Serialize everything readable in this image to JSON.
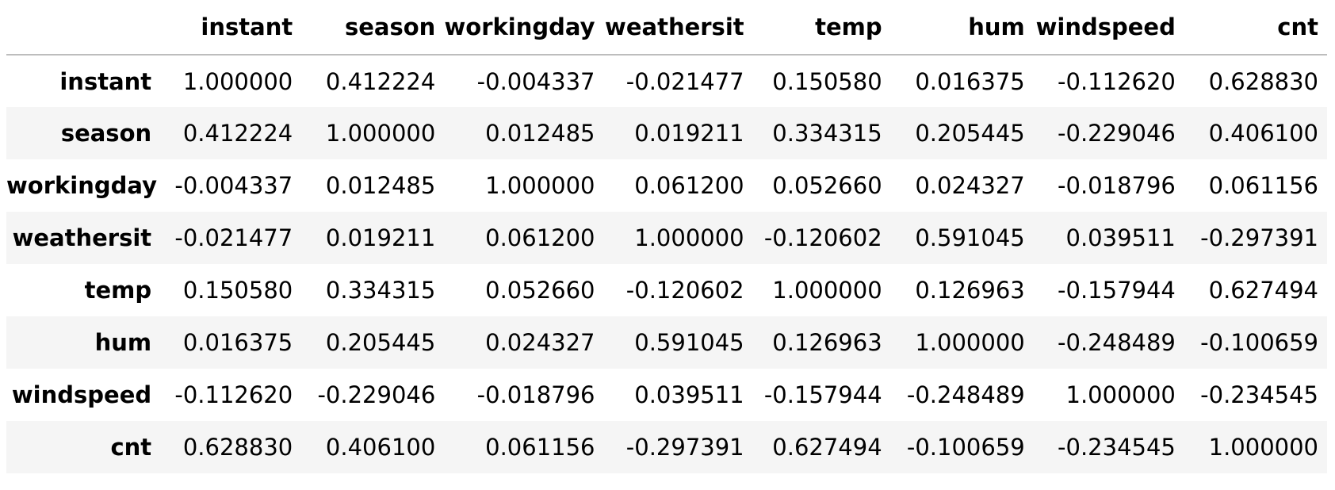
{
  "table": {
    "corner": "",
    "columns": [
      "instant",
      "season",
      "workingday",
      "weathersit",
      "temp",
      "hum",
      "windspeed",
      "cnt"
    ],
    "rows": [
      {
        "label": "instant",
        "cells": [
          "1.000000",
          "0.412224",
          "-0.004337",
          "-0.021477",
          "0.150580",
          "0.016375",
          "-0.112620",
          "0.628830"
        ]
      },
      {
        "label": "season",
        "cells": [
          "0.412224",
          "1.000000",
          "0.012485",
          "0.019211",
          "0.334315",
          "0.205445",
          "-0.229046",
          "0.406100"
        ]
      },
      {
        "label": "workingday",
        "cells": [
          "-0.004337",
          "0.012485",
          "1.000000",
          "0.061200",
          "0.052660",
          "0.024327",
          "-0.018796",
          "0.061156"
        ]
      },
      {
        "label": "weathersit",
        "cells": [
          "-0.021477",
          "0.019211",
          "0.061200",
          "1.000000",
          "-0.120602",
          "0.591045",
          "0.039511",
          "-0.297391"
        ]
      },
      {
        "label": "temp",
        "cells": [
          "0.150580",
          "0.334315",
          "0.052660",
          "-0.120602",
          "1.000000",
          "0.126963",
          "-0.157944",
          "0.627494"
        ]
      },
      {
        "label": "hum",
        "cells": [
          "0.016375",
          "0.205445",
          "0.024327",
          "0.591045",
          "0.126963",
          "1.000000",
          "-0.248489",
          "-0.100659"
        ]
      },
      {
        "label": "windspeed",
        "cells": [
          "-0.112620",
          "-0.229046",
          "-0.018796",
          "0.039511",
          "-0.157944",
          "-0.248489",
          "1.000000",
          "-0.234545"
        ]
      },
      {
        "label": "cnt",
        "cells": [
          "0.628830",
          "0.406100",
          "0.061156",
          "-0.297391",
          "0.627494",
          "-0.100659",
          "-0.234545",
          "1.000000"
        ]
      }
    ]
  }
}
